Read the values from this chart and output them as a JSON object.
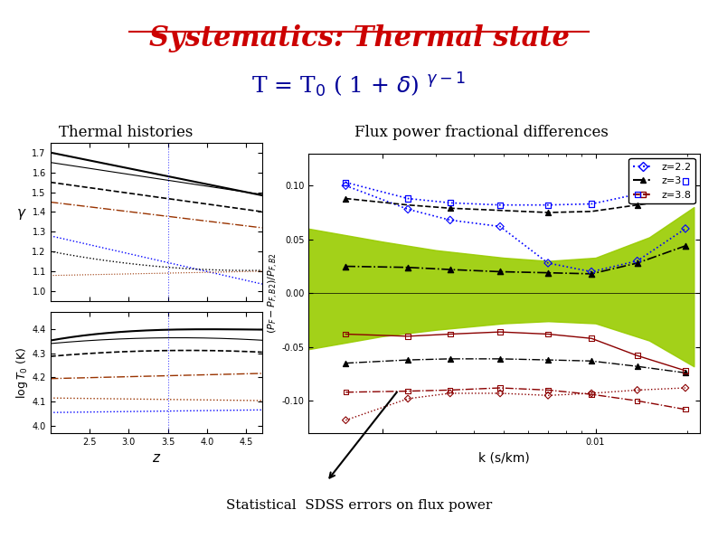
{
  "title": "Systematics: Thermal state",
  "title_color": "#cc0000",
  "formula_color": "#000099",
  "left_label": "Thermal histories",
  "right_label": "Flux power fractional differences",
  "bottom_label": "Statistical  SDSS errors on flux power",
  "background_color": "#ffffff",
  "green_fill_color": "#99cc00",
  "legend_labels": [
    "z=2.2",
    "z=3",
    "z=3.8"
  ]
}
